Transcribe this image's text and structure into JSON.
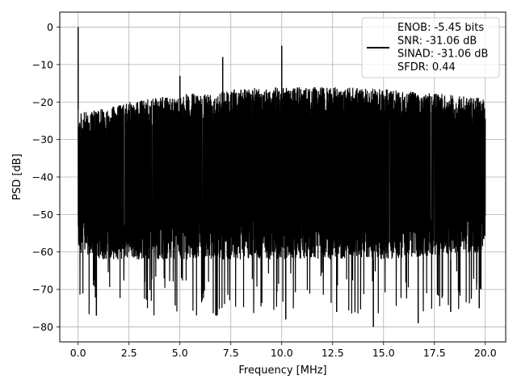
{
  "chart_data": {
    "type": "line",
    "title": "",
    "xlabel": "Frequency [MHz]",
    "ylabel": "PSD [dB]",
    "xlim": [
      -0.9,
      21.0
    ],
    "ylim": [
      -84,
      4
    ],
    "xticks": [
      0.0,
      2.5,
      5.0,
      7.5,
      10.0,
      12.5,
      15.0,
      17.5,
      20.0
    ],
    "xtick_labels": [
      "0.0",
      "2.5",
      "5.0",
      "7.5",
      "10.0",
      "12.5",
      "15.0",
      "17.5",
      "20.0"
    ],
    "yticks": [
      0,
      -10,
      -20,
      -30,
      -40,
      -50,
      -60,
      -70,
      -80
    ],
    "ytick_labels": [
      "0",
      "−10",
      "−20",
      "−30",
      "−40",
      "−50",
      "−60",
      "−70",
      "−80"
    ],
    "grid": true,
    "legend_position": "top-right",
    "series": [
      {
        "name": "ENOB: -5.45 bits\nSNR: -31.06 dB\nSINAD: -31.06 dB\nSFDR: 0.44",
        "color": "#000000",
        "x_range": [
          0.0,
          20.0
        ],
        "points": 4000,
        "noise_envelope": {
          "x": [
            0.0,
            1.0,
            2.5,
            5.0,
            7.5,
            10.0,
            12.5,
            15.0,
            17.5,
            20.0
          ],
          "upper": [
            -23,
            -22,
            -20,
            -18,
            -16.5,
            -16,
            -16,
            -16.5,
            -17.5,
            -19
          ],
          "lower": [
            -60,
            -62,
            -62,
            -62,
            -62,
            -62,
            -62,
            -62,
            -61,
            -60
          ],
          "deep_dip_floor": -77
        },
        "spikes": [
          {
            "x": 0.0,
            "y": 0
          },
          {
            "x": 5.0,
            "y": -13
          },
          {
            "x": 7.1,
            "y": -8
          },
          {
            "x": 10.0,
            "y": -5
          }
        ],
        "dips": [
          {
            "x": 0.9,
            "y": -77
          },
          {
            "x": 6.8,
            "y": -77
          },
          {
            "x": 10.2,
            "y": -78
          },
          {
            "x": 12.7,
            "y": -76
          },
          {
            "x": 14.5,
            "y": -80
          },
          {
            "x": 16.7,
            "y": -79
          },
          {
            "x": 18.3,
            "y": -76
          },
          {
            "x": 19.7,
            "y": -75
          }
        ]
      }
    ]
  }
}
